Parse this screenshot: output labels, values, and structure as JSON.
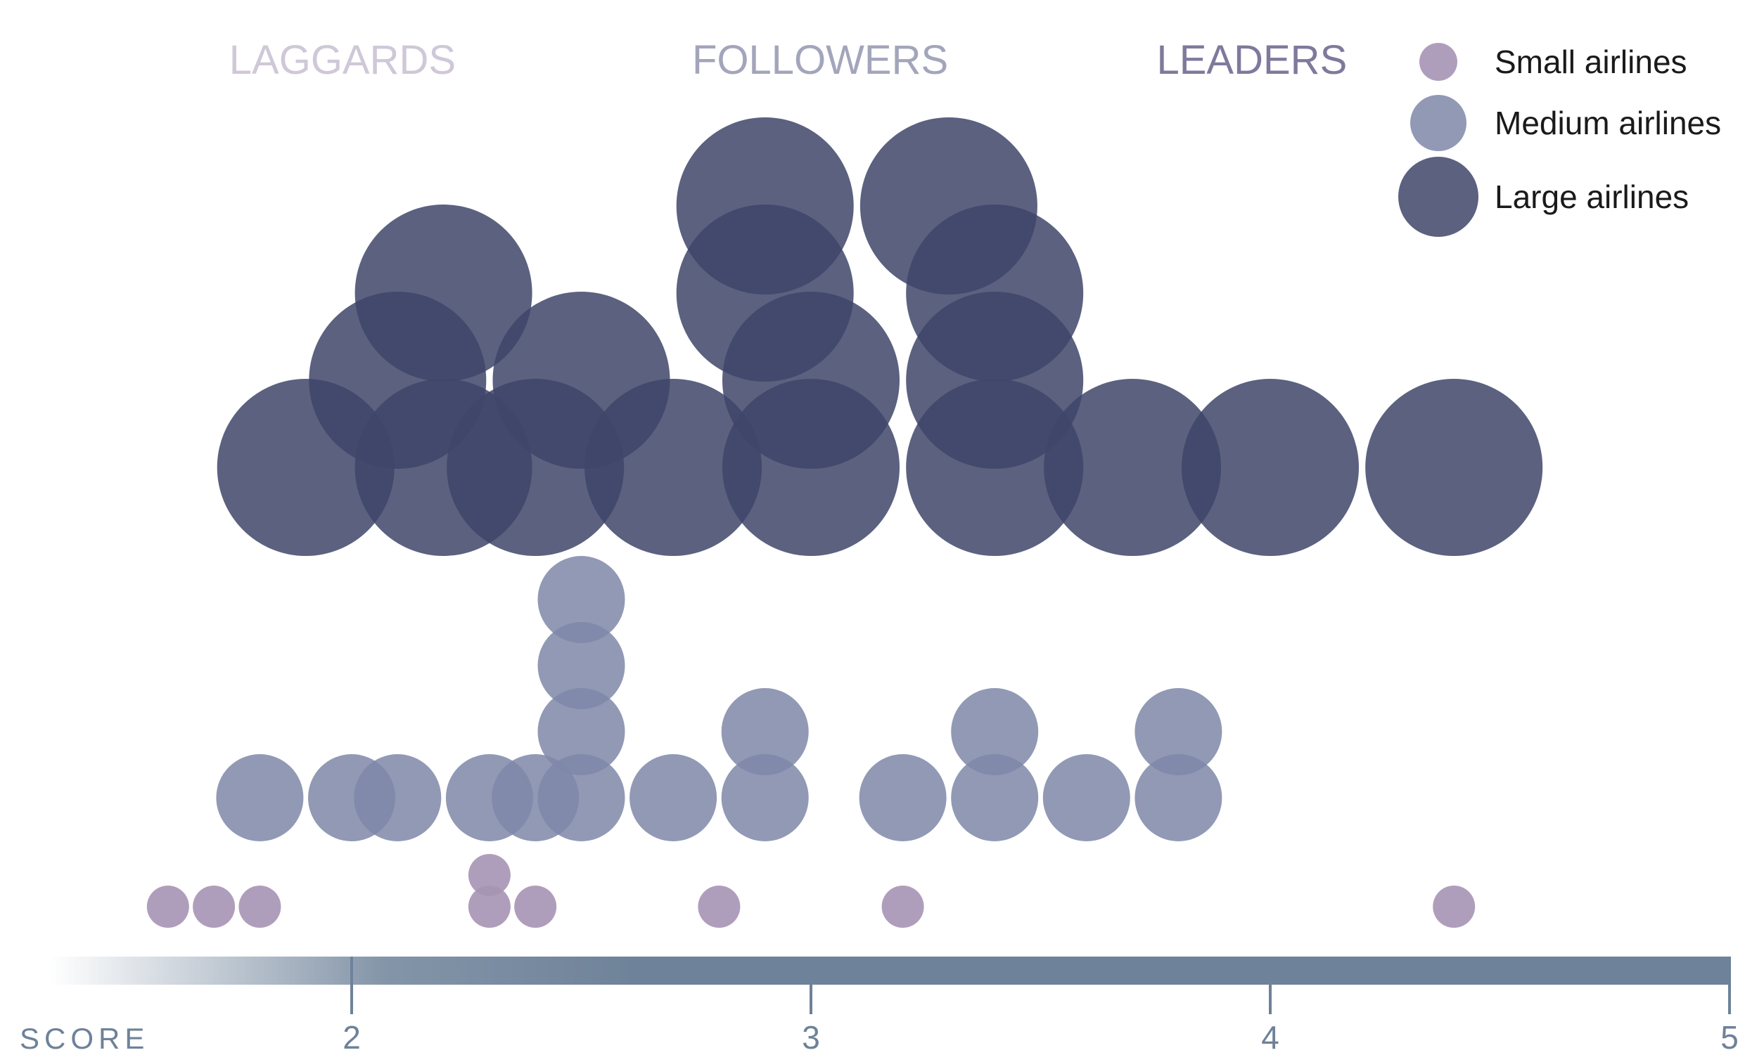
{
  "chart_data": {
    "type": "scatter",
    "subtype": "beeswarm",
    "xlabel": "SCORE",
    "xlim": [
      1.35,
      5
    ],
    "x_ticks": [
      2,
      3,
      4,
      5
    ],
    "segments": [
      {
        "label": "LAGGARDS",
        "color": "#cfc8d8",
        "x_center": 1.98
      },
      {
        "label": "FOLLOWERS",
        "color": "#a3a5bb",
        "x_center": 3.02
      },
      {
        "label": "LEADERS",
        "color": "#7f7a9c",
        "x_center": 3.96
      }
    ],
    "legend": {
      "position": "top-right",
      "entries": [
        {
          "series": "small",
          "label": "Small airlines"
        },
        {
          "series": "medium",
          "label": "Medium airlines"
        },
        {
          "series": "large",
          "label": "Large airlines"
        }
      ]
    },
    "series": [
      {
        "key": "small",
        "name": "Small airlines",
        "color": "#a693b4",
        "opacity": 0.9,
        "points": [
          {
            "x": 1.6,
            "stack": 0
          },
          {
            "x": 1.7,
            "stack": 0
          },
          {
            "x": 1.8,
            "stack": 0
          },
          {
            "x": 2.3,
            "stack": 0
          },
          {
            "x": 2.3,
            "stack": 1
          },
          {
            "x": 2.4,
            "stack": 0
          },
          {
            "x": 2.8,
            "stack": 0
          },
          {
            "x": 3.2,
            "stack": 0
          },
          {
            "x": 4.4,
            "stack": 0
          }
        ]
      },
      {
        "key": "medium",
        "name": "Medium airlines",
        "color": "#7e87a8",
        "opacity": 0.85,
        "points": [
          {
            "x": 1.8,
            "stack": 0
          },
          {
            "x": 2.0,
            "stack": 0
          },
          {
            "x": 2.1,
            "stack": 0
          },
          {
            "x": 2.3,
            "stack": 0
          },
          {
            "x": 2.4,
            "stack": 0
          },
          {
            "x": 2.5,
            "stack": 0
          },
          {
            "x": 2.5,
            "stack": 1
          },
          {
            "x": 2.5,
            "stack": 2
          },
          {
            "x": 2.5,
            "stack": 3
          },
          {
            "x": 2.7,
            "stack": 0
          },
          {
            "x": 2.9,
            "stack": 0
          },
          {
            "x": 2.9,
            "stack": 1
          },
          {
            "x": 3.2,
            "stack": 0
          },
          {
            "x": 3.4,
            "stack": 0
          },
          {
            "x": 3.4,
            "stack": 1
          },
          {
            "x": 3.6,
            "stack": 0
          },
          {
            "x": 3.8,
            "stack": 0
          },
          {
            "x": 3.8,
            "stack": 1
          }
        ]
      },
      {
        "key": "large",
        "name": "Large airlines",
        "color": "#3e4569",
        "opacity": 0.85,
        "points": [
          {
            "x": 1.9,
            "stack": 0
          },
          {
            "x": 2.1,
            "stack": 1
          },
          {
            "x": 2.2,
            "stack": 0
          },
          {
            "x": 2.2,
            "stack": 2
          },
          {
            "x": 2.4,
            "stack": 0
          },
          {
            "x": 2.5,
            "stack": 1
          },
          {
            "x": 2.7,
            "stack": 0
          },
          {
            "x": 2.9,
            "stack": 2
          },
          {
            "x": 2.9,
            "stack": 3
          },
          {
            "x": 3.0,
            "stack": 0
          },
          {
            "x": 3.0,
            "stack": 1
          },
          {
            "x": 3.3,
            "stack": 3
          },
          {
            "x": 3.4,
            "stack": 0
          },
          {
            "x": 3.4,
            "stack": 1
          },
          {
            "x": 3.4,
            "stack": 2
          },
          {
            "x": 3.7,
            "stack": 0
          },
          {
            "x": 4.0,
            "stack": 0
          },
          {
            "x": 4.4,
            "stack": 0
          }
        ]
      }
    ],
    "axis_color": "#6e8299"
  }
}
